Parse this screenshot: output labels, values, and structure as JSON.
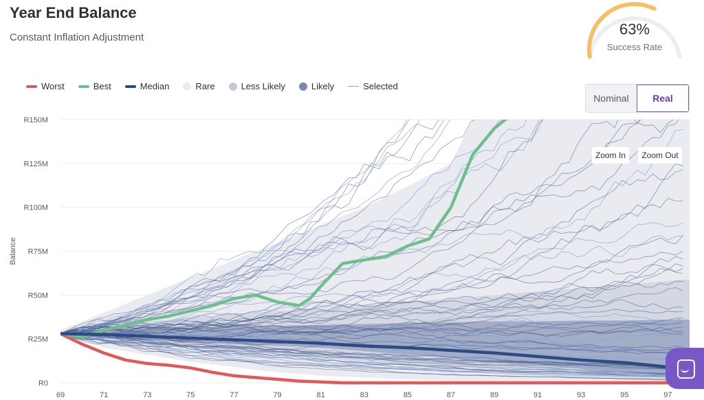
{
  "header": {
    "title": "Year End Balance",
    "subtitle": "Constant Inflation Adjustment"
  },
  "gauge": {
    "value": "63%",
    "label": "Success Rate",
    "fraction": 0.63,
    "color": "#f6bf66",
    "track_color": "#eceef2"
  },
  "legend": [
    {
      "label": "Worst",
      "kind": "line",
      "color": "#e05a5a"
    },
    {
      "label": "Best",
      "kind": "line",
      "color": "#6fbf8e"
    },
    {
      "label": "Median",
      "kind": "line",
      "color": "#2e4a83"
    },
    {
      "label": "Rare",
      "kind": "dot",
      "color": "#e9ebf0"
    },
    {
      "label": "Less Likely",
      "kind": "dot",
      "color": "#c2c9d8"
    },
    {
      "label": "Likely",
      "kind": "dot",
      "color": "#7a8bb0"
    },
    {
      "label": "Selected",
      "kind": "thin",
      "color": "#8aa3d4"
    }
  ],
  "toggle": {
    "nominal": "Nominal",
    "real": "Real",
    "selected": "Real"
  },
  "zoom": {
    "in": "Zoom In",
    "out": "Zoom Out"
  },
  "chart_data": {
    "type": "line",
    "ylabel": "Balance",
    "xlabel": "",
    "xlim": [
      69,
      98
    ],
    "ylim": [
      0,
      150
    ],
    "x_ticks": [
      "69",
      "71",
      "73",
      "75",
      "77",
      "79",
      "81",
      "83",
      "85",
      "87",
      "89",
      "91",
      "93",
      "95",
      "97"
    ],
    "y_ticks": [
      "R0",
      "R25M",
      "R50M",
      "R75M",
      "R100M",
      "R125M",
      "R150M"
    ],
    "y_tick_values": [
      0,
      25,
      50,
      75,
      100,
      125,
      150
    ],
    "grid": true,
    "legend_position": "top-left",
    "series": [
      {
        "name": "Worst",
        "color": "#e05a5a",
        "x": [
          69,
          70,
          71,
          72,
          73,
          74,
          75,
          76,
          77,
          78,
          79,
          80,
          81,
          82,
          83,
          84,
          85,
          86,
          87,
          88,
          89,
          90,
          91,
          92,
          93,
          94,
          95,
          96,
          97,
          98
        ],
        "values": [
          28,
          22,
          17,
          13,
          11,
          10,
          8.5,
          6,
          4,
          3,
          2,
          1,
          0.5,
          0,
          0,
          0,
          0,
          0,
          0,
          0,
          0,
          0,
          0,
          0,
          0,
          0,
          0,
          0,
          0,
          0
        ]
      },
      {
        "name": "Best",
        "color": "#6fbf8e",
        "x": [
          69,
          70,
          71,
          72,
          73,
          74,
          75,
          76,
          77,
          78,
          79,
          80,
          80.5,
          81,
          82,
          83,
          84,
          85,
          86,
          87,
          88,
          89,
          89.7
        ],
        "values": [
          28,
          26,
          30,
          33,
          36,
          38,
          41,
          44,
          48,
          50,
          46,
          44,
          48,
          55,
          68,
          70,
          72,
          78,
          82,
          100,
          130,
          145,
          152
        ]
      },
      {
        "name": "Median",
        "color": "#2e4a83",
        "x": [
          69,
          71,
          73,
          75,
          77,
          79,
          81,
          83,
          85,
          87,
          89,
          91,
          93,
          95,
          97,
          98
        ],
        "values": [
          28,
          27.5,
          26.5,
          25.5,
          24.5,
          23.5,
          22.5,
          21,
          20,
          18.5,
          17,
          15,
          13,
          11.5,
          9,
          8
        ]
      }
    ],
    "bands": [
      {
        "name": "Rare",
        "color": "#e9ebf0",
        "x": [
          69,
          71,
          73,
          75,
          77,
          79,
          81,
          83,
          85,
          87,
          88,
          90,
          93,
          95,
          97,
          98
        ],
        "upper": [
          30,
          40,
          50,
          60,
          70,
          80,
          90,
          100,
          112,
          125,
          150,
          150,
          150,
          150,
          150,
          150
        ],
        "lower": [
          28,
          20,
          16,
          12,
          9,
          6,
          4,
          3,
          2,
          1,
          0,
          0,
          0,
          0,
          0,
          0
        ]
      },
      {
        "name": "Less Likely",
        "color": "#c2c9d8",
        "x": [
          69,
          71,
          73,
          75,
          77,
          79,
          81,
          83,
          85,
          87,
          89,
          91,
          93,
          95,
          97,
          98
        ],
        "upper": [
          29,
          32,
          35,
          37,
          39,
          41,
          42,
          44,
          46,
          48,
          50,
          52,
          54,
          56,
          58,
          59
        ],
        "lower": [
          28,
          24,
          22,
          20,
          18,
          16,
          14,
          12,
          10,
          8,
          6,
          4,
          3,
          2,
          1,
          1
        ]
      },
      {
        "name": "Likely",
        "color": "#7a8bb0",
        "x": [
          69,
          71,
          73,
          75,
          77,
          79,
          81,
          83,
          85,
          87,
          89,
          91,
          93,
          95,
          97,
          98
        ],
        "upper": [
          29,
          30,
          31,
          31.5,
          32,
          32.5,
          33,
          33.5,
          34,
          34.5,
          35,
          35,
          35.5,
          35.5,
          36,
          36
        ],
        "lower": [
          28,
          26,
          24,
          23,
          22,
          21,
          20,
          18,
          16,
          14,
          12,
          10,
          8,
          6,
          4,
          3
        ]
      }
    ]
  }
}
